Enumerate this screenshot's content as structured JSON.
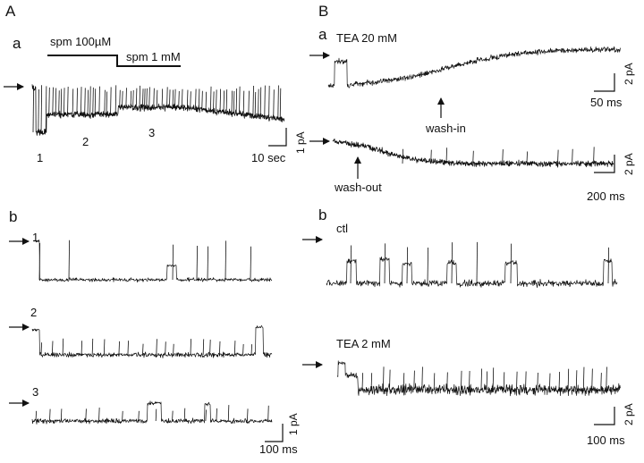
{
  "figure": {
    "panel_A": {
      "label": "A",
      "a": {
        "label": "a",
        "drug_high": "spm 100µM",
        "drug_higher": "spm 1 mM",
        "segments": [
          "1",
          "2",
          "3"
        ],
        "scale_current": "1 pA",
        "scale_time": "10 sec"
      },
      "b": {
        "label": "b",
        "trace_labels": [
          "1",
          "2",
          "3"
        ],
        "scale_current": "1 pA",
        "scale_time": "100 ms"
      }
    },
    "panel_B": {
      "label": "B",
      "a": {
        "label": "a",
        "condition": "TEA 20 mM",
        "wash_in": "wash-in",
        "wash_out": "wash-out",
        "scale1_current": "2 pA",
        "scale1_time": "50 ms",
        "scale2_current": "2 pA",
        "scale2_time": "200 ms"
      },
      "b": {
        "label": "b",
        "control": "ctl",
        "condition": "TEA 2 mM",
        "scale_current": "2 pA",
        "scale_time": "100 ms"
      }
    },
    "colors": {
      "trace": "#111111",
      "background": "#ffffff"
    },
    "icons": [
      "arrow-right-icon",
      "arrow-up-icon"
    ]
  }
}
